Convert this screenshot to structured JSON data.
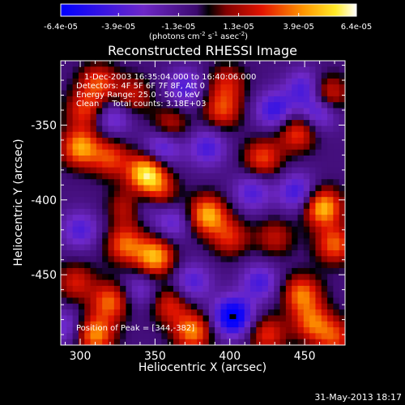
{
  "chart_data": {
    "type": "heatmap",
    "title": "Reconstructed RHESSI Image",
    "xlabel": "Heliocentric X (arcsec)",
    "ylabel": "Heliocentric Y (arcsec)",
    "xlim": [
      287,
      477
    ],
    "ylim": [
      -497,
      -307
    ],
    "xticks": [
      300,
      350,
      400,
      450
    ],
    "yticks": [
      -350,
      -400,
      -450
    ],
    "colorbar": {
      "min": -6.4e-05,
      "max": 6.4e-05,
      "tick_values": [
        -6.4e-05,
        -3.9e-05,
        -1.3e-05,
        1.3e-05,
        3.9e-05,
        6.4e-05
      ],
      "tick_labels": [
        "-6.4e-05",
        "-3.9e-05",
        "-1.3e-05",
        "1.3e-05",
        "3.9e-05",
        "6.4e-05"
      ],
      "units_parts": [
        "(photons cm",
        "-2",
        " s",
        "-1",
        " asec",
        "-2",
        ")"
      ]
    },
    "annotations": [
      "1-Dec-2003 16:35:04.000 to 16:40:06.000",
      "Detectors: 4F 5F 6F 7F 8F, Att 0",
      "Energy Range: 25.0 - 50.0 keV",
      "Clean     Total counts: 3.18E+03"
    ],
    "peak_label": "Position of Peak = [344,-382]",
    "peak": [
      344,
      -382
    ],
    "blobs": [
      {
        "x": 300,
        "y": -365,
        "v": 5.2e-05
      },
      {
        "x": 303,
        "y": -340,
        "v": 3.4e-05
      },
      {
        "x": 312,
        "y": -322,
        "v": 3.8e-05
      },
      {
        "x": 320,
        "y": -372,
        "v": 3.6e-05
      },
      {
        "x": 335,
        "y": -330,
        "v": 2.8e-05
      },
      {
        "x": 344,
        "y": -382,
        "v": 6.4e-05
      },
      {
        "x": 352,
        "y": -395,
        "v": 3.6e-05
      },
      {
        "x": 332,
        "y": -405,
        "v": 3.2e-05
      },
      {
        "x": 360,
        "y": -350,
        "v": 2.8e-05
      },
      {
        "x": 350,
        "y": -438,
        "v": 5.6e-05
      },
      {
        "x": 330,
        "y": -430,
        "v": 4.2e-05
      },
      {
        "x": 320,
        "y": -468,
        "v": 4.3e-05
      },
      {
        "x": 310,
        "y": -490,
        "v": 5e-05
      },
      {
        "x": 297,
        "y": -455,
        "v": 3e-05
      },
      {
        "x": 375,
        "y": -488,
        "v": 4.8e-05
      },
      {
        "x": 360,
        "y": -470,
        "v": 3.2e-05
      },
      {
        "x": 385,
        "y": -410,
        "v": 5.5e-05
      },
      {
        "x": 400,
        "y": -425,
        "v": 3.2e-05
      },
      {
        "x": 395,
        "y": -340,
        "v": 3.6e-05
      },
      {
        "x": 398,
        "y": -322,
        "v": 2.8e-05
      },
      {
        "x": 422,
        "y": -372,
        "v": 3.8e-05
      },
      {
        "x": 445,
        "y": -355,
        "v": 3.8e-05
      },
      {
        "x": 465,
        "y": -330,
        "v": 4.4e-05
      },
      {
        "x": 462,
        "y": -405,
        "v": 5.8e-05
      },
      {
        "x": 470,
        "y": -430,
        "v": 4.2e-05
      },
      {
        "x": 448,
        "y": -463,
        "v": 4.5e-05
      },
      {
        "x": 455,
        "y": -482,
        "v": 4e-05
      },
      {
        "x": 425,
        "y": -490,
        "v": 3.4e-05
      },
      {
        "x": 470,
        "y": -492,
        "v": 3.5e-05
      },
      {
        "x": 430,
        "y": -425,
        "v": 2.6e-05
      },
      {
        "x": 355,
        "y": -365,
        "v": -3.6e-05
      },
      {
        "x": 343,
        "y": -402,
        "v": -3e-05
      },
      {
        "x": 322,
        "y": -345,
        "v": -2.8e-05
      },
      {
        "x": 370,
        "y": -325,
        "v": -3e-05
      },
      {
        "x": 385,
        "y": -365,
        "v": -3.2e-05
      },
      {
        "x": 430,
        "y": -340,
        "v": -3.8e-05
      },
      {
        "x": 450,
        "y": -325,
        "v": -3.2e-05
      },
      {
        "x": 460,
        "y": -340,
        "v": -4e-05
      },
      {
        "x": 445,
        "y": -395,
        "v": -3.6e-05
      },
      {
        "x": 415,
        "y": -395,
        "v": -3e-05
      },
      {
        "x": 402,
        "y": -478,
        "v": -6.4e-05
      },
      {
        "x": 420,
        "y": -455,
        "v": -3.2e-05
      },
      {
        "x": 300,
        "y": -420,
        "v": -3e-05
      },
      {
        "x": 362,
        "y": -415,
        "v": -2.6e-05
      },
      {
        "x": 375,
        "y": -455,
        "v": -3e-05
      },
      {
        "x": 340,
        "y": -460,
        "v": -2.2e-05
      },
      {
        "x": 290,
        "y": -485,
        "v": -2.4e-05
      }
    ]
  },
  "footer": {
    "timestamp": "31-May-2013 18:17"
  }
}
